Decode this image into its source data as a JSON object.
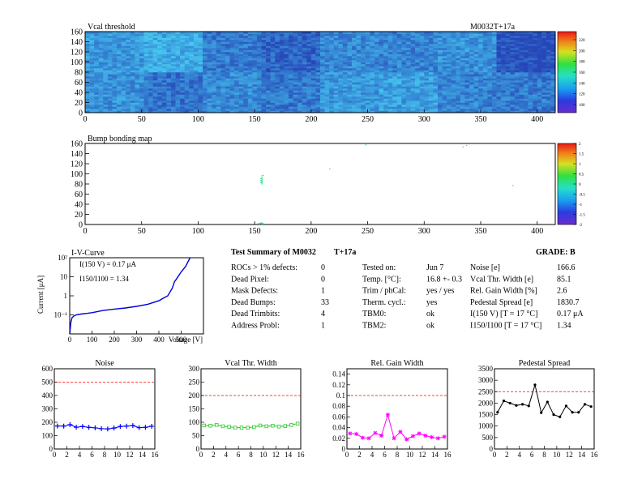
{
  "header": {
    "map_title": "Vcal threshold",
    "module_id": "M0032T+17a",
    "bump_title": "Bump bonding map"
  },
  "colors": {
    "map_base": "#2f7fd6",
    "map_light": "#45c8f0",
    "map_dark": "#2747b8",
    "bump_point": "#2ee08a",
    "noise": "#0000ff",
    "vcal_width": "#22cc22",
    "gain_width": "#ff00ff",
    "pedestal": "#000000",
    "iv": "#0000dd",
    "limit_line": "#ff0000"
  },
  "summary": {
    "title": "Test Summary of M0032",
    "module_suffix": "T+17a",
    "grade": "GRADE:  B",
    "defects": [
      {
        "label": "ROCs > 1% defects:",
        "value": "0"
      },
      {
        "label": "Dead Pixel:",
        "value": "0"
      },
      {
        "label": "Mask Defects:",
        "value": "1"
      },
      {
        "label": "Dead Bumps:",
        "value": "33"
      },
      {
        "label": "Dead Trimbits:",
        "value": "4"
      },
      {
        "label": "Address Probl:",
        "value": "1"
      }
    ],
    "conditions": [
      {
        "label": "Tested on:",
        "value": "Jun 7"
      },
      {
        "label": "Temp. [°C]:",
        "value": "16.8 +- 0.3"
      },
      {
        "label": "Trim / phCal:",
        "value": "yes / yes"
      },
      {
        "label": "Therm. cycl.:",
        "value": "yes"
      },
      {
        "label": "TBM0:",
        "value": "ok"
      },
      {
        "label": "TBM2:",
        "value": "ok"
      }
    ],
    "results": [
      {
        "label": "Noise [e]",
        "value": "166.6"
      },
      {
        "label": "Vcal Thr. Width [e]",
        "value": "85.1"
      },
      {
        "label": "Rel. Gain Width [%]",
        "value": "2.6"
      },
      {
        "label": "Pedestal Spread [e]",
        "value": "1830.7"
      },
      {
        "label": "I(150 V) [T = 17 °C]",
        "value": "0.17 μA"
      },
      {
        "label": "I150/I100   [T = 17 °C]",
        "value": "1.34"
      }
    ]
  },
  "chart_data": [
    {
      "type": "heatmap",
      "title": "Vcal threshold",
      "x_range": [
        0,
        416
      ],
      "y_range": [
        0,
        160
      ],
      "x_ticks": [
        "0",
        "50",
        "100",
        "150",
        "200",
        "250",
        "300",
        "350",
        "400"
      ],
      "y_ticks": [
        "0",
        "20",
        "40",
        "60",
        "80",
        "100",
        "120",
        "140",
        "160"
      ],
      "colorbar_ticks": [
        "100",
        "120",
        "140",
        "160",
        "180",
        "200",
        "220"
      ],
      "roc_means_top": [
        112,
        118,
        104,
        98,
        108,
        106,
        110,
        92
      ],
      "roc_means_bottom": [
        110,
        102,
        108,
        104,
        112,
        114,
        106,
        104
      ]
    },
    {
      "type": "scatter",
      "title": "Bump bonding map",
      "x_range": [
        0,
        416
      ],
      "y_range": [
        0,
        160
      ],
      "x_ticks": [
        "0",
        "50",
        "100",
        "150",
        "200",
        "250",
        "300",
        "350",
        "400"
      ],
      "y_ticks": [
        "0",
        "20",
        "40",
        "60",
        "80",
        "100",
        "120",
        "140",
        "160"
      ],
      "colorbar_ticks": [
        "-2",
        "-1.5",
        "-1",
        "-0.5",
        "0",
        "0.5",
        "1",
        "1.5",
        "2"
      ],
      "points": [
        [
          156,
          96
        ],
        [
          156,
          92
        ],
        [
          156,
          90
        ],
        [
          156,
          88
        ],
        [
          156,
          86
        ],
        [
          156,
          84
        ],
        [
          156,
          82
        ],
        [
          156,
          80
        ],
        [
          157,
          97
        ],
        [
          155,
          91
        ],
        [
          155,
          87
        ],
        [
          155,
          83
        ],
        [
          153,
          2
        ],
        [
          154,
          2
        ],
        [
          155,
          2
        ],
        [
          156,
          2
        ],
        [
          157,
          2
        ],
        [
          154,
          1
        ],
        [
          155,
          3
        ],
        [
          156,
          3
        ],
        [
          156,
          1
        ],
        [
          157,
          1
        ],
        [
          248,
          157
        ],
        [
          334,
          153
        ],
        [
          337,
          156
        ],
        [
          378,
          77
        ],
        [
          216,
          110
        ]
      ]
    },
    {
      "type": "line",
      "title": "I-V-Curve",
      "xlabel": "Voltage [V]",
      "ylabel": "Current [μA]",
      "y_log": true,
      "x_range": [
        0,
        600
      ],
      "y_range": [
        0.01,
        100
      ],
      "x_ticks": [
        "0",
        "100",
        "200",
        "300",
        "400",
        "500"
      ],
      "y_ticks": [
        "10⁻¹",
        "1",
        "10",
        "10²"
      ],
      "annotation_1": "I(150 V) = 0.17 μA",
      "annotation_2": "I150/I100 = 1.34",
      "x": [
        0,
        5,
        10,
        20,
        30,
        50,
        80,
        100,
        150,
        200,
        250,
        300,
        350,
        400,
        420,
        440,
        460,
        470,
        480,
        500,
        520,
        540
      ],
      "y": [
        0.01,
        0.04,
        0.07,
        0.09,
        0.1,
        0.11,
        0.12,
        0.13,
        0.17,
        0.2,
        0.23,
        0.28,
        0.36,
        0.55,
        0.75,
        1.0,
        2.5,
        5.5,
        8,
        18,
        35,
        100
      ]
    },
    {
      "type": "line",
      "title": "Noise",
      "x_range": [
        0,
        16
      ],
      "y_range": [
        0,
        600
      ],
      "limit": 500,
      "x_ticks": [
        "0",
        "2",
        "4",
        "6",
        "8",
        "10",
        "12",
        "14",
        "16"
      ],
      "y_ticks": [
        "0",
        "100",
        "200",
        "300",
        "400",
        "500",
        "600"
      ],
      "x": [
        0.5,
        1.5,
        2.5,
        3.5,
        4.5,
        5.5,
        6.5,
        7.5,
        8.5,
        9.5,
        10.5,
        11.5,
        12.5,
        13.5,
        14.5,
        15.5
      ],
      "values": [
        172,
        171,
        182,
        163,
        168,
        162,
        158,
        152,
        150,
        157,
        168,
        171,
        175,
        160,
        162,
        170
      ]
    },
    {
      "type": "line",
      "title": "Vcal Thr. Width",
      "x_range": [
        0,
        16
      ],
      "y_range": [
        0,
        300
      ],
      "limit": 200,
      "x_ticks": [
        "0",
        "2",
        "4",
        "6",
        "8",
        "10",
        "12",
        "14",
        "16"
      ],
      "y_ticks": [
        "0",
        "50",
        "100",
        "150",
        "200",
        "250",
        "300"
      ],
      "x": [
        0.5,
        1.5,
        2.5,
        3.5,
        4.5,
        5.5,
        6.5,
        7.5,
        8.5,
        9.5,
        10.5,
        11.5,
        12.5,
        13.5,
        14.5,
        15.5
      ],
      "values": [
        88,
        87,
        90,
        85,
        83,
        80,
        80,
        80,
        82,
        88,
        85,
        87,
        84,
        86,
        90,
        95
      ]
    },
    {
      "type": "line",
      "title": "Rel. Gain Width",
      "x_range": [
        0,
        16
      ],
      "y_range": [
        0,
        0.15
      ],
      "limit": 0.1,
      "x_ticks": [
        "0",
        "2",
        "4",
        "6",
        "8",
        "10",
        "12",
        "14",
        "16"
      ],
      "y_ticks": [
        "0",
        "0.02",
        "0.04",
        "0.06",
        "0.08",
        "0.1",
        "0.12",
        "0.14"
      ],
      "x": [
        0.5,
        1.5,
        2.5,
        3.5,
        4.5,
        5.5,
        6.5,
        7.5,
        8.5,
        9.5,
        10.5,
        11.5,
        12.5,
        13.5,
        14.5,
        15.5
      ],
      "values": [
        0.029,
        0.028,
        0.021,
        0.02,
        0.03,
        0.025,
        0.064,
        0.02,
        0.032,
        0.018,
        0.024,
        0.029,
        0.025,
        0.022,
        0.02,
        0.023
      ]
    },
    {
      "type": "line",
      "title": "Pedestal Spread",
      "x_range": [
        0,
        16
      ],
      "y_range": [
        0,
        3500
      ],
      "limit": 2500,
      "x_ticks": [
        "0",
        "2",
        "4",
        "6",
        "8",
        "10",
        "12",
        "14",
        "16"
      ],
      "y_ticks": [
        "0",
        "500",
        "1000",
        "1500",
        "2000",
        "2500",
        "3000",
        "3500"
      ],
      "x": [
        0.5,
        1.5,
        2.5,
        3.5,
        4.5,
        5.5,
        6.5,
        7.5,
        8.5,
        9.5,
        10.5,
        11.5,
        12.5,
        13.5,
        14.5,
        15.5
      ],
      "values": [
        1600,
        2100,
        2000,
        1900,
        1950,
        1880,
        2800,
        1580,
        2050,
        1500,
        1400,
        1880,
        1600,
        1600,
        1950,
        1850
      ]
    }
  ]
}
